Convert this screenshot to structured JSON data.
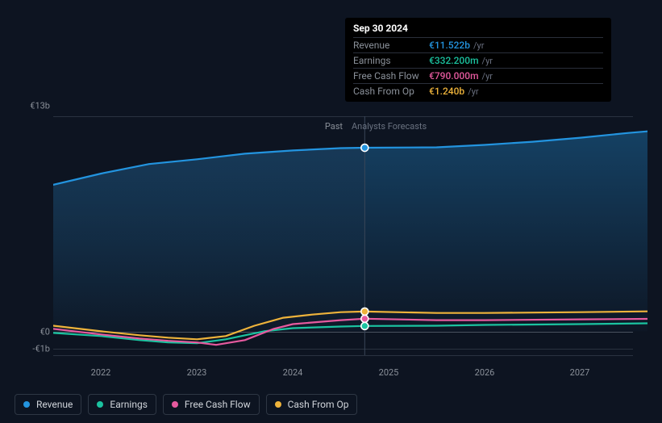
{
  "chart": {
    "background_color": "#0d1421",
    "grid_color": "#2a3240",
    "text_color": "#8a9099",
    "y_axis": {
      "ticks": [
        {
          "label": "€13b",
          "value": 13
        },
        {
          "label": "€0",
          "value": 0
        },
        {
          "label": "-€1b",
          "value": -1
        }
      ],
      "min": -1.5,
      "max": 13.5
    },
    "x_axis": {
      "ticks": [
        "2022",
        "2023",
        "2024",
        "2025",
        "2026",
        "2027"
      ],
      "min": 2021.5,
      "max": 2027.7
    },
    "sections": {
      "past": {
        "label": "Past",
        "end_x": 2024.75
      },
      "forecast": {
        "label": "Analysts Forecasts"
      }
    },
    "hover": {
      "date": "Sep 30 2024",
      "x": 2024.75,
      "rows": [
        {
          "label": "Revenue",
          "value": "€11.522b",
          "unit": "/yr",
          "color": "#2394df"
        },
        {
          "label": "Earnings",
          "value": "€332.200m",
          "unit": "/yr",
          "color": "#1bc3a0"
        },
        {
          "label": "Free Cash Flow",
          "value": "€790.000m",
          "unit": "/yr",
          "color": "#e65a9f"
        },
        {
          "label": "Cash From Op",
          "value": "€1.240b",
          "unit": "/yr",
          "color": "#eeb33b"
        }
      ]
    },
    "series": [
      {
        "name": "Revenue",
        "color": "#2394df",
        "fill": true,
        "points": [
          [
            2021.5,
            9.2
          ],
          [
            2022.0,
            9.9
          ],
          [
            2022.5,
            10.5
          ],
          [
            2023.0,
            10.8
          ],
          [
            2023.5,
            11.15
          ],
          [
            2024.0,
            11.35
          ],
          [
            2024.5,
            11.5
          ],
          [
            2024.75,
            11.522
          ],
          [
            2025.5,
            11.55
          ],
          [
            2026.0,
            11.7
          ],
          [
            2026.5,
            11.9
          ],
          [
            2027.0,
            12.15
          ],
          [
            2027.5,
            12.45
          ],
          [
            2027.7,
            12.55
          ]
        ]
      },
      {
        "name": "Earnings",
        "color": "#1bc3a0",
        "fill": false,
        "points": [
          [
            2021.5,
            -0.1
          ],
          [
            2022.0,
            -0.3
          ],
          [
            2022.4,
            -0.55
          ],
          [
            2022.7,
            -0.7
          ],
          [
            2023.0,
            -0.75
          ],
          [
            2023.3,
            -0.5
          ],
          [
            2023.7,
            0.0
          ],
          [
            2024.0,
            0.2
          ],
          [
            2024.5,
            0.3
          ],
          [
            2024.75,
            0.332
          ],
          [
            2025.5,
            0.35
          ],
          [
            2026.0,
            0.4
          ],
          [
            2027.0,
            0.45
          ],
          [
            2027.7,
            0.5
          ]
        ]
      },
      {
        "name": "Free Cash Flow",
        "color": "#e65a9f",
        "fill": false,
        "points": [
          [
            2021.5,
            0.15
          ],
          [
            2022.0,
            -0.2
          ],
          [
            2022.4,
            -0.45
          ],
          [
            2022.7,
            -0.6
          ],
          [
            2023.0,
            -0.7
          ],
          [
            2023.2,
            -0.85
          ],
          [
            2023.5,
            -0.55
          ],
          [
            2023.8,
            0.15
          ],
          [
            2024.0,
            0.45
          ],
          [
            2024.5,
            0.7
          ],
          [
            2024.75,
            0.79
          ],
          [
            2025.5,
            0.7
          ],
          [
            2026.0,
            0.7
          ],
          [
            2027.0,
            0.75
          ],
          [
            2027.7,
            0.78
          ]
        ]
      },
      {
        "name": "Cash From Op",
        "color": "#eeb33b",
        "fill": false,
        "points": [
          [
            2021.5,
            0.35
          ],
          [
            2022.0,
            0.0
          ],
          [
            2022.4,
            -0.25
          ],
          [
            2022.7,
            -0.4
          ],
          [
            2023.0,
            -0.5
          ],
          [
            2023.3,
            -0.3
          ],
          [
            2023.6,
            0.35
          ],
          [
            2023.9,
            0.85
          ],
          [
            2024.2,
            1.05
          ],
          [
            2024.5,
            1.2
          ],
          [
            2024.75,
            1.24
          ],
          [
            2025.5,
            1.15
          ],
          [
            2026.0,
            1.15
          ],
          [
            2027.0,
            1.2
          ],
          [
            2027.7,
            1.25
          ]
        ]
      }
    ],
    "legend": [
      {
        "label": "Revenue",
        "color": "#2394df"
      },
      {
        "label": "Earnings",
        "color": "#1bc3a0"
      },
      {
        "label": "Free Cash Flow",
        "color": "#e65a9f"
      },
      {
        "label": "Cash From Op",
        "color": "#eeb33b"
      }
    ]
  }
}
